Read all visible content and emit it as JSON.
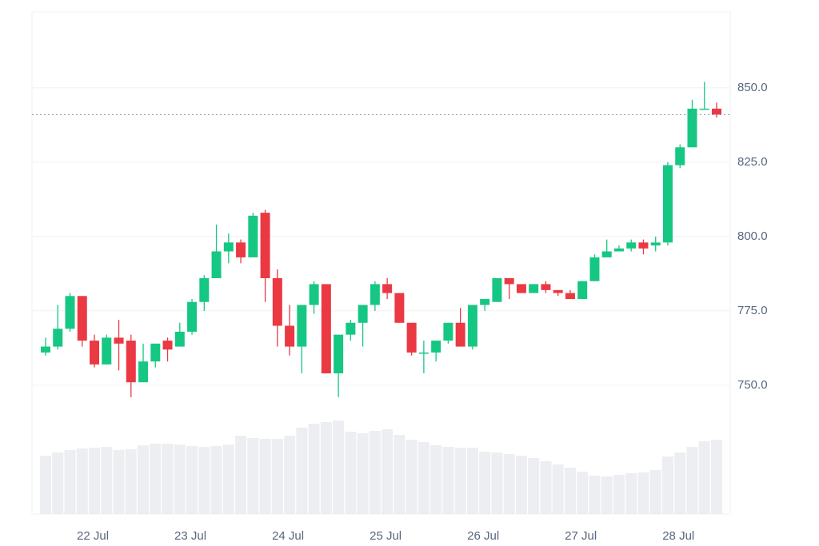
{
  "chart_data": {
    "type": "candlestick",
    "categories": [
      null,
      null,
      null,
      null,
      "22 Jul",
      null,
      null,
      null,
      null,
      null,
      null,
      null,
      "23 Jul",
      null,
      null,
      null,
      null,
      null,
      null,
      null,
      "24 Jul",
      null,
      null,
      null,
      null,
      null,
      null,
      null,
      "25 Jul",
      null,
      null,
      null,
      null,
      null,
      null,
      null,
      "26 Jul",
      null,
      null,
      null,
      null,
      null,
      null,
      null,
      "27 Jul",
      null,
      null,
      null,
      null,
      null,
      null,
      null,
      "28 Jul",
      null,
      null,
      null
    ],
    "open": [
      761,
      763,
      769,
      780,
      765,
      757,
      766,
      765,
      751,
      758,
      765,
      763,
      768,
      778,
      786,
      795,
      798,
      793,
      808,
      786,
      770,
      763,
      777,
      784,
      754,
      767,
      771,
      777,
      784,
      781,
      771,
      761,
      761,
      765,
      771,
      763,
      777,
      778,
      786,
      784,
      781,
      784,
      782,
      781,
      779,
      785,
      793,
      795,
      796,
      798,
      797,
      798,
      824,
      830,
      843,
      843
    ],
    "high": [
      766,
      777,
      781,
      780,
      767,
      767,
      772,
      767,
      764,
      764,
      766,
      771,
      779,
      787,
      804,
      801,
      799,
      808,
      809,
      789,
      777,
      777,
      785,
      784,
      767,
      772,
      777,
      785,
      786,
      781,
      771,
      765,
      765,
      771,
      776,
      777,
      779,
      786,
      786,
      784,
      784,
      785,
      782,
      782,
      785,
      794,
      799,
      797,
      799,
      799,
      800,
      825,
      831,
      846,
      852,
      845
    ],
    "low": [
      760,
      762,
      768,
      763,
      756,
      757,
      755,
      746,
      751,
      756,
      758,
      763,
      767,
      775,
      786,
      791,
      791,
      793,
      778,
      763,
      760,
      754,
      774,
      754,
      746,
      765,
      763,
      775,
      779,
      771,
      760,
      754,
      758,
      764,
      763,
      762,
      775,
      778,
      779,
      781,
      781,
      781,
      780,
      779,
      779,
      785,
      793,
      795,
      795,
      794,
      795,
      797,
      823,
      830,
      843,
      840
    ],
    "close": [
      763,
      769,
      780,
      765,
      757,
      766,
      764,
      751,
      758,
      764,
      762,
      768,
      778,
      786,
      795,
      798,
      793,
      807,
      786,
      770,
      763,
      777,
      784,
      754,
      767,
      771,
      777,
      784,
      781,
      771,
      761,
      761,
      765,
      771,
      763,
      777,
      779,
      786,
      784,
      781,
      784,
      782,
      781,
      779,
      785,
      793,
      795,
      796,
      798,
      796,
      798,
      824,
      830,
      843,
      843,
      841
    ],
    "volume": [
      73,
      77,
      80,
      82,
      83,
      84,
      80,
      81,
      86,
      88,
      88,
      87,
      85,
      84,
      85,
      87,
      98,
      95,
      94,
      94,
      98,
      108,
      113,
      115,
      117,
      103,
      101,
      104,
      106,
      99,
      93,
      90,
      86,
      84,
      83,
      83,
      78,
      77,
      75,
      73,
      70,
      66,
      62,
      58,
      53,
      48,
      47,
      49,
      51,
      52,
      55,
      72,
      77,
      84,
      91,
      93
    ],
    "up_color": "#16c784",
    "down_color": "#ea3943",
    "volume_color": "#eceef1",
    "ylim": [
      706.7,
      875.5
    ],
    "yticks": [
      {
        "value": 750,
        "label": "750.0"
      },
      {
        "value": 775,
        "label": "775.0"
      },
      {
        "value": 800,
        "label": "800.0"
      },
      {
        "value": 825,
        "label": "825.0"
      },
      {
        "value": 850,
        "label": "850.0"
      }
    ],
    "grid": true
  }
}
